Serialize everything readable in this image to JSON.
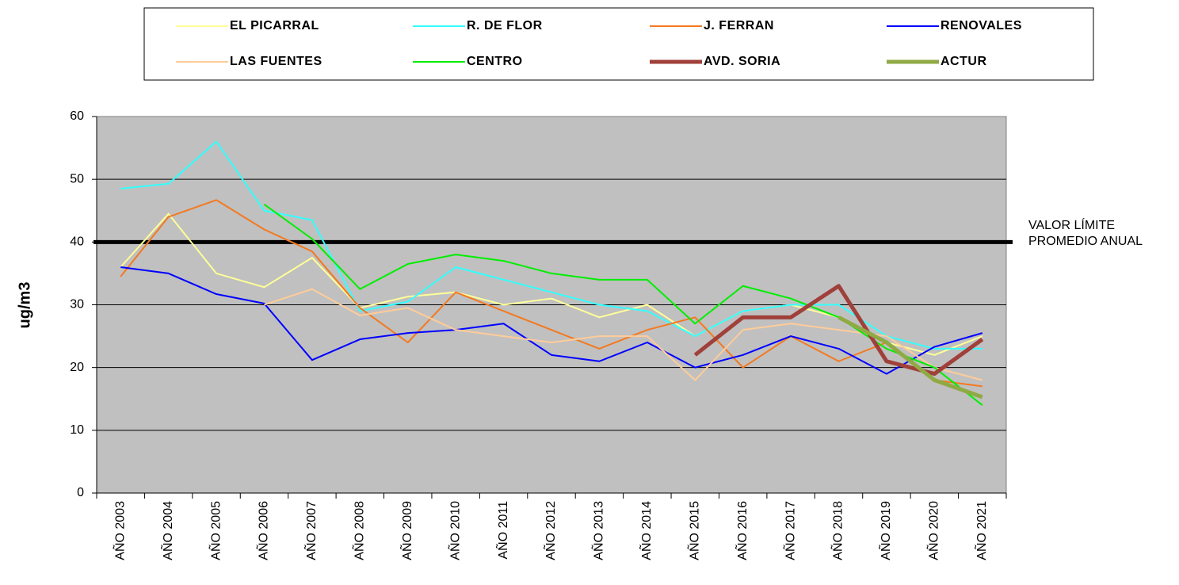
{
  "chart_data": {
    "type": "line",
    "y_label": "ug/m3",
    "categories": [
      "AÑO 2003",
      "AÑO 2004",
      "AÑO 2005",
      "AÑO 2006",
      "AÑO 2007",
      "AÑO 2008",
      "AÑO 2009",
      "AÑO 2010",
      "AÑO 2011",
      "AÑO 2012",
      "AÑO 2013",
      "AÑO 2014",
      "AÑO 2015",
      "AÑO 2016",
      "AÑO 2017",
      "AÑO 2018",
      "AÑO 2019",
      "AÑO 2020",
      "AÑO 2021"
    ],
    "series": [
      {
        "name": "EL PICARRAL",
        "color": "#ffff99",
        "width": 2,
        "values": [
          36,
          44.5,
          35,
          32.8,
          37.5,
          29.5,
          31.3,
          32,
          30,
          31,
          28,
          30,
          25,
          29,
          30,
          28,
          24,
          22,
          25
        ]
      },
      {
        "name": "R. DE FLOR",
        "color": "#33ffff",
        "width": 2,
        "values": [
          48.5,
          49.3,
          56,
          45,
          43.5,
          29,
          30.5,
          36,
          34,
          32,
          30,
          29,
          25,
          29,
          30,
          30,
          25,
          23,
          23
        ]
      },
      {
        "name": "J. FERRAN",
        "color": "#f47920",
        "width": 2,
        "values": [
          34.5,
          44,
          46.7,
          42,
          38.5,
          29.5,
          24,
          32,
          29,
          26,
          23,
          26,
          28,
          20,
          25,
          21,
          24,
          18,
          17
        ]
      },
      {
        "name": "RENOVALES",
        "color": "#0000ff",
        "width": 2,
        "values": [
          36,
          35,
          31.7,
          30.2,
          21.2,
          24.5,
          25.5,
          26,
          27,
          22,
          21,
          24,
          20,
          22,
          25,
          23,
          19,
          23.3,
          25.5
        ]
      },
      {
        "name": "LAS FUENTES",
        "color": "#ffcc99",
        "width": 2,
        "values": [
          null,
          null,
          null,
          30,
          32.5,
          28.3,
          29.5,
          26,
          25,
          24,
          25,
          25,
          18,
          26,
          27,
          26,
          25,
          20,
          18
        ]
      },
      {
        "name": "CENTRO",
        "color": "#00ee00",
        "width": 2,
        "values": [
          null,
          null,
          null,
          46,
          40.5,
          32.5,
          36.5,
          38,
          37,
          35,
          34,
          34,
          27,
          33,
          31,
          28,
          23,
          20,
          14
        ]
      },
      {
        "name": "AVD. SORIA",
        "color": "#a0403a",
        "width": 5,
        "values": [
          null,
          null,
          null,
          null,
          null,
          null,
          null,
          null,
          null,
          null,
          null,
          null,
          22,
          28,
          28,
          33,
          21,
          19,
          24.5
        ]
      },
      {
        "name": "ACTUR",
        "color": "#8faa44",
        "width": 5,
        "values": [
          null,
          null,
          null,
          null,
          null,
          null,
          null,
          null,
          null,
          null,
          null,
          null,
          null,
          null,
          null,
          28,
          24,
          18,
          15.3
        ]
      }
    ],
    "ylim": [
      0,
      60
    ],
    "yticks": [
      0,
      10,
      20,
      30,
      40,
      50,
      60
    ],
    "grid": true,
    "threshold": 40,
    "threshold_label": [
      "VALOR LÍMITE",
      "PROMEDIO ANUAL"
    ]
  }
}
